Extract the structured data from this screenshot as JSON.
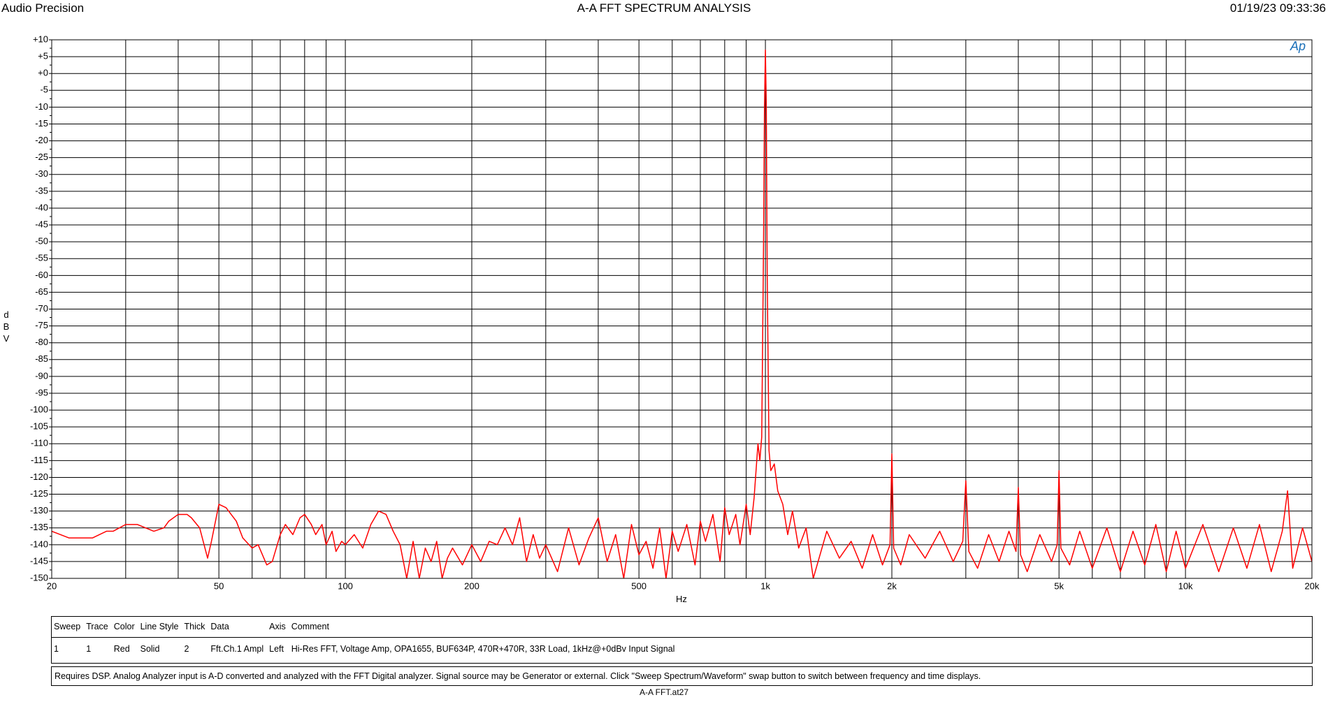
{
  "header_left": "Audio Precision",
  "header_right": "01/19/23 09:33:36",
  "logo": "Ap",
  "chart_data": {
    "type": "line",
    "title": "A-A FFT SPECTRUM ANALYSIS",
    "x_label": "Hz",
    "y_label": "dBV",
    "log_x": true,
    "grid": true,
    "xlim": [
      20,
      20000
    ],
    "ylim": [
      -150,
      10
    ],
    "xticks": [
      20,
      50,
      100,
      200,
      500,
      {
        "value": 1000,
        "label": "1k"
      },
      {
        "value": 2000,
        "label": "2k"
      },
      {
        "value": 5000,
        "label": "5k"
      },
      {
        "value": 10000,
        "label": "10k"
      },
      {
        "value": 20000,
        "label": "20k"
      }
    ],
    "xgrid_minor": [
      30,
      40,
      60,
      70,
      80,
      90,
      300,
      400,
      600,
      700,
      800,
      900,
      3000,
      4000,
      6000,
      7000,
      8000,
      9000
    ],
    "yticks": [
      {
        "value": 10,
        "label": "+10"
      },
      {
        "value": 5,
        "label": "+5"
      },
      {
        "value": 0,
        "label": "+0"
      },
      -5,
      -10,
      -15,
      -20,
      -25,
      -30,
      -35,
      -40,
      -45,
      -50,
      -55,
      -60,
      -65,
      -70,
      -75,
      -80,
      -85,
      -90,
      -95,
      -100,
      -105,
      -110,
      -115,
      -120,
      -125,
      -130,
      -135,
      -140,
      -145,
      -150
    ],
    "x": [
      20,
      22,
      25,
      27,
      28,
      30,
      32,
      35,
      37,
      38,
      40,
      42,
      43,
      45,
      47,
      48,
      50,
      52,
      55,
      57,
      60,
      62,
      65,
      67,
      70,
      72,
      75,
      78,
      80,
      83,
      85,
      88,
      90,
      93,
      95,
      98,
      100,
      105,
      110,
      115,
      120,
      125,
      130,
      135,
      140,
      145,
      150,
      155,
      160,
      165,
      170,
      175,
      180,
      190,
      200,
      210,
      220,
      230,
      240,
      250,
      260,
      270,
      280,
      290,
      300,
      320,
      340,
      360,
      380,
      400,
      420,
      440,
      460,
      480,
      500,
      520,
      540,
      560,
      580,
      600,
      620,
      650,
      680,
      700,
      720,
      750,
      780,
      800,
      820,
      850,
      870,
      900,
      920,
      940,
      960,
      970,
      980,
      990,
      995,
      1000,
      1005,
      1010,
      1020,
      1030,
      1050,
      1070,
      1100,
      1130,
      1160,
      1200,
      1250,
      1300,
      1400,
      1500,
      1600,
      1700,
      1800,
      1900,
      1980,
      2000,
      2020,
      2100,
      2200,
      2400,
      2600,
      2800,
      2950,
      3000,
      3050,
      3200,
      3400,
      3600,
      3800,
      3950,
      4000,
      4050,
      4200,
      4500,
      4800,
      4950,
      5000,
      5050,
      5300,
      5600,
      6000,
      6500,
      7000,
      7500,
      8000,
      8500,
      9000,
      9500,
      10000,
      11000,
      12000,
      13000,
      14000,
      15000,
      16000,
      17000,
      17500,
      18000,
      19000,
      20000
    ],
    "series": [
      {
        "name": "Fft.Ch.1 Ampl",
        "color": "#ff0000",
        "values": [
          -136,
          -138,
          -138,
          -136,
          -136,
          -134,
          -134,
          -136,
          -135,
          -133,
          -131,
          -131,
          -132,
          -135,
          -144,
          -139,
          -128,
          -129,
          -133,
          -138,
          -141,
          -140,
          -146,
          -145,
          -137,
          -134,
          -137,
          -132,
          -131,
          -134,
          -137,
          -134,
          -140,
          -136,
          -142,
          -139,
          -140,
          -137,
          -141,
          -134,
          -130,
          -131,
          -136,
          -140,
          -150,
          -139,
          -150,
          -141,
          -145,
          -139,
          -150,
          -144,
          -141,
          -146,
          -140,
          -145,
          -139,
          -140,
          -135,
          -140,
          -132,
          -145,
          -137,
          -144,
          -140,
          -148,
          -135,
          -146,
          -138,
          -132,
          -145,
          -137,
          -150,
          -134,
          -143,
          -139,
          -147,
          -135,
          -150,
          -136,
          -142,
          -134,
          -146,
          -133,
          -139,
          -131,
          -145,
          -129,
          -137,
          -131,
          -140,
          -128,
          -137,
          -126,
          -110,
          -115,
          -108,
          -50,
          -10,
          7,
          -10,
          -60,
          -112,
          -118,
          -116,
          -124,
          -128,
          -137,
          -130,
          -141,
          -135,
          -150,
          -136,
          -144,
          -139,
          -147,
          -137,
          -146,
          -140,
          -113,
          -141,
          -146,
          -137,
          -144,
          -136,
          -145,
          -139,
          -121,
          -142,
          -147,
          -137,
          -145,
          -136,
          -142,
          -123,
          -143,
          -148,
          -137,
          -145,
          -140,
          -118,
          -141,
          -146,
          -136,
          -147,
          -135,
          -148,
          -136,
          -146,
          -134,
          -148,
          -136,
          -147,
          -134,
          -148,
          -135,
          -147,
          -134,
          -148,
          -136,
          -124,
          -147,
          -135,
          -145
        ]
      }
    ]
  },
  "legend_table": {
    "headers": [
      "Sweep",
      "Trace",
      "Color",
      "Line Style",
      "Thick",
      "Data",
      "Axis",
      "Comment"
    ],
    "rows": [
      [
        "1",
        "1",
        "Red",
        "Solid",
        "2",
        "Fft.Ch.1 Ampl",
        "Left",
        "Hi-Res FFT, Voltage Amp, OPA1655, BUF634P, 470R+470R, 33R Load, 1kHz@+0dBv Input Signal"
      ]
    ]
  },
  "footnote": "Requires DSP.  Analog Analyzer input is A-D converted and analyzed with the FFT Digital analyzer.  Signal source may be Generator or external.  Click \"Sweep Spectrum/Waveform\" swap button to switch between frequency and time displays.",
  "filename": "A-A FFT.at27"
}
